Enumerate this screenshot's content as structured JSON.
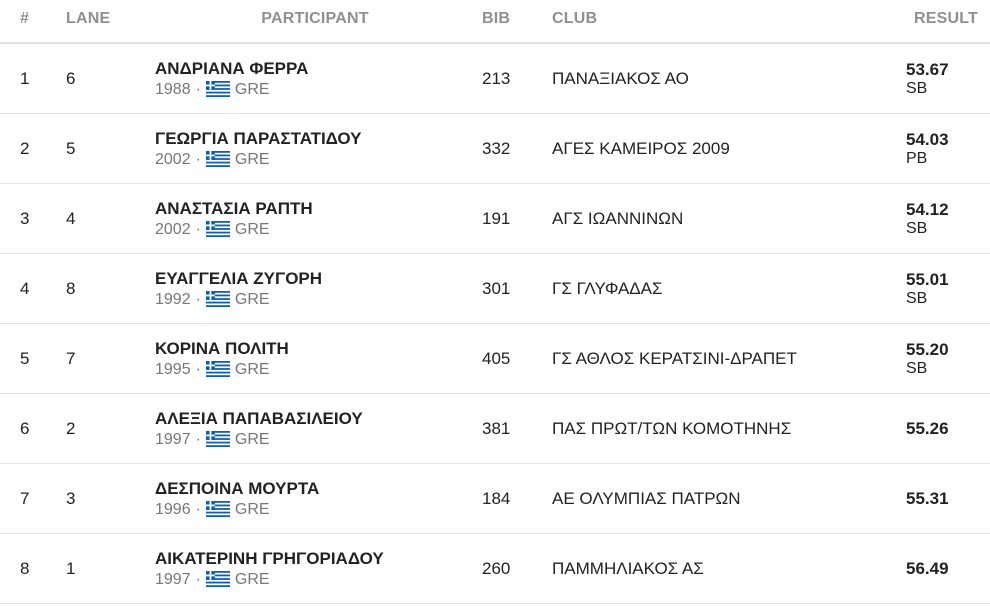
{
  "headers": {
    "pos": "#",
    "lane": "LANE",
    "participant": "PARTICIPANT",
    "bib": "BIB",
    "club": "CLUB",
    "result": "RESULT"
  },
  "separator": "·",
  "flag_icon": "greece-flag-icon",
  "colors": {
    "flag_blue": "#0d5eaf",
    "flag_white": "#ffffff",
    "header_text": "#8f8f8f"
  },
  "rows": [
    {
      "pos": "1",
      "lane": "6",
      "name": "ΑΝΔΡΙΑΝΑ ΦΕΡΡΑ",
      "year": "1988",
      "country": "GRE",
      "bib": "213",
      "club": "ΠΑΝΑΞΙΑΚΟΣ ΑΟ",
      "result": "53.67",
      "note": "SB"
    },
    {
      "pos": "2",
      "lane": "5",
      "name": "ΓΕΩΡΓΙΑ ΠΑΡΑΣΤΑΤΙΔΟΥ",
      "year": "2002",
      "country": "GRE",
      "bib": "332",
      "club": "ΑΓΕΣ ΚΑΜΕΙΡΟΣ 2009",
      "result": "54.03",
      "note": "PB"
    },
    {
      "pos": "3",
      "lane": "4",
      "name": "ΑΝΑΣΤΑΣΙΑ ΡΑΠΤΗ",
      "year": "2002",
      "country": "GRE",
      "bib": "191",
      "club": "ΑΓΣ ΙΩΑΝΝΙΝΩΝ",
      "result": "54.12",
      "note": "SB"
    },
    {
      "pos": "4",
      "lane": "8",
      "name": "ΕΥΑΓΓΕΛΙΑ ΖΥΓΟΡΗ",
      "year": "1992",
      "country": "GRE",
      "bib": "301",
      "club": "ΓΣ ΓΛΥΦΑΔΑΣ",
      "result": "55.01",
      "note": "SB"
    },
    {
      "pos": "5",
      "lane": "7",
      "name": "ΚΟΡΙΝΑ ΠΟΛΙΤΗ",
      "year": "1995",
      "country": "GRE",
      "bib": "405",
      "club": "ΓΣ ΑΘΛΟΣ ΚΕΡΑΤΣΙΝΙ-ΔΡΑΠΕΤ",
      "result": "55.20",
      "note": "SB"
    },
    {
      "pos": "6",
      "lane": "2",
      "name": "ΑΛΕΞΙΑ ΠΑΠΑΒΑΣΙΛΕΙΟΥ",
      "year": "1997",
      "country": "GRE",
      "bib": "381",
      "club": "ΠΑΣ ΠΡΩΤ/ΤΩΝ ΚΟΜΟΤΗΝΗΣ",
      "result": "55.26",
      "note": ""
    },
    {
      "pos": "7",
      "lane": "3",
      "name": "ΔΕΣΠΟΙΝΑ ΜΟΥΡΤΑ",
      "year": "1996",
      "country": "GRE",
      "bib": "184",
      "club": "ΑΕ ΟΛΥΜΠΙΑΣ ΠΑΤΡΩΝ",
      "result": "55.31",
      "note": ""
    },
    {
      "pos": "8",
      "lane": "1",
      "name": "ΑΙΚΑΤΕΡΙΝΗ ΓΡΗΓΟΡΙΑΔΟΥ",
      "year": "1997",
      "country": "GRE",
      "bib": "260",
      "club": "ΠΑΜΜΗΛΙΑΚΟΣ ΑΣ",
      "result": "56.49",
      "note": ""
    }
  ]
}
